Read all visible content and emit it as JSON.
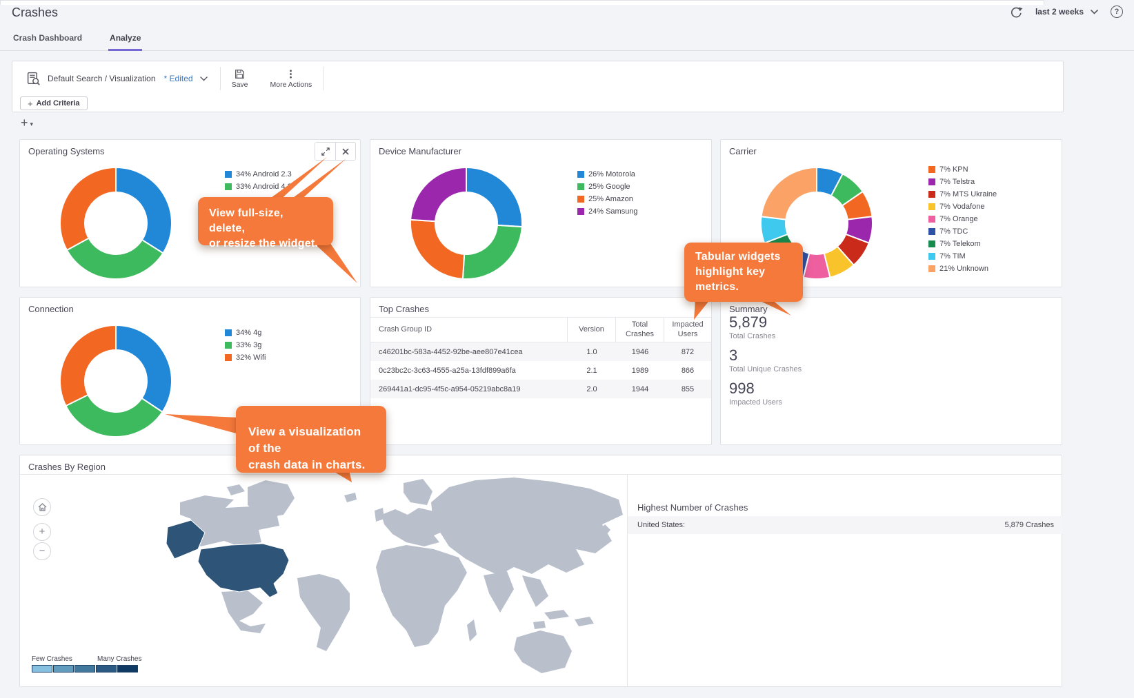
{
  "app": {
    "title": "Crashes",
    "time_range": "last 2 weeks",
    "accent_purple": "#7468d4",
    "callout_orange": "#f5793b"
  },
  "icons": {
    "help": "?",
    "more_actions_glyph": "⋮",
    "plus": "+",
    "minus": "−",
    "caret_down": "▾"
  },
  "tabs": [
    {
      "label": "Crash Dashboard",
      "active": false
    },
    {
      "label": "Analyze",
      "active": true
    }
  ],
  "toolbar": {
    "search_label": "Default Search / Visualization",
    "edited": "* Edited",
    "save": "Save",
    "more_actions": "More Actions",
    "add_criteria": "Add Criteria"
  },
  "callouts": {
    "c1": "View full-size, delete,\nor resize the widget.",
    "c2": "Tabular widgets\nhighlight key\nmetrics.",
    "c3": "View a visualization of the\ncrash data in charts."
  },
  "widgets": {
    "operating_systems": {
      "title": "Operating Systems",
      "legend": [
        {
          "text": "34% Android 2.3",
          "color": "#2088d6"
        },
        {
          "text": "33% Android 4.2",
          "color": "#3dba5d"
        }
      ],
      "slices": [
        {
          "value": 34,
          "color": "#2088d6"
        },
        {
          "value": 33,
          "color": "#3dba5d"
        },
        {
          "value": 33,
          "color": "#f26822"
        }
      ]
    },
    "device_manufacturer": {
      "title": "Device Manufacturer",
      "legend": [
        {
          "text": "26% Motorola",
          "color": "#2088d6"
        },
        {
          "text": "25% Google",
          "color": "#3dba5d"
        },
        {
          "text": "25% Amazon",
          "color": "#f26822"
        },
        {
          "text": "24% Samsung",
          "color": "#9b27ad"
        }
      ],
      "slices": [
        {
          "value": 26,
          "color": "#2088d6"
        },
        {
          "value": 25,
          "color": "#3dba5d"
        },
        {
          "value": 25,
          "color": "#f26822"
        },
        {
          "value": 24,
          "color": "#9b27ad"
        }
      ]
    },
    "carrier": {
      "title": "Carrier",
      "legend": [
        {
          "text": "7% KPN",
          "color": "#f26822"
        },
        {
          "text": "7% Telstra",
          "color": "#9b27ad"
        },
        {
          "text": "7% MTS Ukraine",
          "color": "#c92a1a"
        },
        {
          "text": "7% Vodafone",
          "color": "#f9c32b"
        },
        {
          "text": "7% Orange",
          "color": "#ee5f9f"
        },
        {
          "text": "7% TDC",
          "color": "#2d51a5"
        },
        {
          "text": "7% Telekom",
          "color": "#178a4d"
        },
        {
          "text": "7% TIM",
          "color": "#3fc9ef"
        },
        {
          "text": "21% Unknown",
          "color": "#fba366"
        }
      ],
      "slices": [
        {
          "value": 7,
          "color": "#2088d6"
        },
        {
          "value": 7,
          "color": "#3dba5d"
        },
        {
          "value": 7,
          "color": "#f26822"
        },
        {
          "value": 7,
          "color": "#9b27ad"
        },
        {
          "value": 7,
          "color": "#c92a1a"
        },
        {
          "value": 7,
          "color": "#f9c32b"
        },
        {
          "value": 7,
          "color": "#ee5f9f"
        },
        {
          "value": 7,
          "color": "#2d51a5"
        },
        {
          "value": 7,
          "color": "#178a4d"
        },
        {
          "value": 7,
          "color": "#3fc9ef"
        },
        {
          "value": 21,
          "color": "#fba366"
        }
      ]
    },
    "connection": {
      "title": "Connection",
      "legend": [
        {
          "text": "34% 4g",
          "color": "#2088d6"
        },
        {
          "text": "33% 3g",
          "color": "#3dba5d"
        },
        {
          "text": "32% Wifi",
          "color": "#f26822"
        }
      ],
      "slices": [
        {
          "value": 34,
          "color": "#2088d6"
        },
        {
          "value": 33,
          "color": "#3dba5d"
        },
        {
          "value": 32,
          "color": "#f26822"
        }
      ]
    },
    "top_crashes": {
      "title": "Top Crashes",
      "columns": [
        "Crash Group ID",
        "Version",
        "Total Crashes",
        "Impacted Users"
      ],
      "rows": [
        [
          "c46201bc-583a-4452-92be-aee807e41cea",
          "1.0",
          "1946",
          "872"
        ],
        [
          "0c23bc2c-3c63-4555-a25a-13fdf899a6fa",
          "2.1",
          "1989",
          "866"
        ],
        [
          "269441a1-dc95-4f5c-a954-05219abc8a19",
          "2.0",
          "1944",
          "855"
        ]
      ]
    },
    "summary": {
      "title": "Summary",
      "metrics": [
        {
          "value": "5,879",
          "label": "Total Crashes"
        },
        {
          "value": "3",
          "label": "Total Unique Crashes"
        },
        {
          "value": "998",
          "label": "Impacted Users"
        }
      ]
    },
    "crashes_by_region": {
      "title": "Crashes By Region",
      "map_scale": {
        "low_label": "Few Crashes",
        "high_label": "Many Crashes",
        "colors": [
          "#85c0e0",
          "#5f9cbe",
          "#41789e",
          "#2a5a84",
          "#0e3a64"
        ]
      },
      "map_colors": {
        "land": "#b9c0cc",
        "highlight": "#2e5478"
      },
      "highest": {
        "title": "Highest Number of Crashes",
        "rows": [
          {
            "label": "United States:",
            "value": "5,879 Crashes"
          }
        ]
      }
    }
  }
}
